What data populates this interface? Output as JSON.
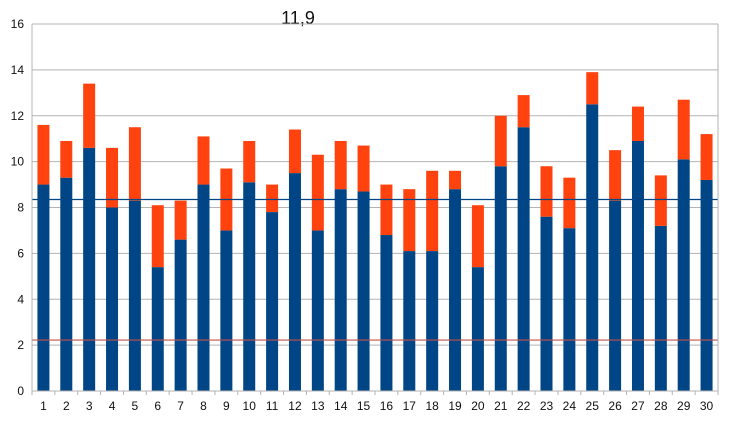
{
  "chart_data": {
    "type": "bar",
    "title": "11,9",
    "stacked": true,
    "categories": [
      "1",
      "2",
      "3",
      "4",
      "5",
      "6",
      "7",
      "8",
      "9",
      "10",
      "11",
      "12",
      "13",
      "14",
      "15",
      "16",
      "17",
      "18",
      "19",
      "20",
      "21",
      "22",
      "23",
      "24",
      "25",
      "26",
      "27",
      "28",
      "29",
      "30"
    ],
    "series": [
      {
        "color": "#004586",
        "values": [
          9.0,
          9.3,
          10.6,
          8.0,
          8.3,
          5.4,
          6.6,
          9.0,
          7.0,
          9.1,
          7.8,
          9.5,
          7.0,
          8.8,
          8.7,
          6.8,
          6.1,
          6.1,
          8.8,
          5.4,
          9.8,
          11.5,
          7.6,
          7.1,
          12.5,
          8.3,
          10.9,
          7.2,
          10.1,
          9.2
        ]
      },
      {
        "color": "#ff420e",
        "values": [
          2.6,
          1.6,
          2.8,
          2.6,
          3.2,
          2.7,
          1.7,
          2.1,
          2.7,
          1.8,
          1.2,
          1.9,
          3.3,
          2.1,
          2.0,
          2.2,
          2.7,
          3.5,
          0.8,
          2.7,
          2.2,
          1.4,
          2.2,
          2.2,
          1.4,
          2.2,
          1.5,
          2.2,
          2.6,
          2.0
        ]
      }
    ],
    "reference_lines": [
      {
        "value": 8.35,
        "color": "#004586"
      },
      {
        "value": 2.22,
        "color": "#c0504d"
      }
    ],
    "ylim": [
      0,
      16
    ],
    "yticks": [
      0,
      2,
      4,
      6,
      8,
      10,
      12,
      14,
      16
    ],
    "grid": true,
    "xlabel": "",
    "ylabel": ""
  }
}
